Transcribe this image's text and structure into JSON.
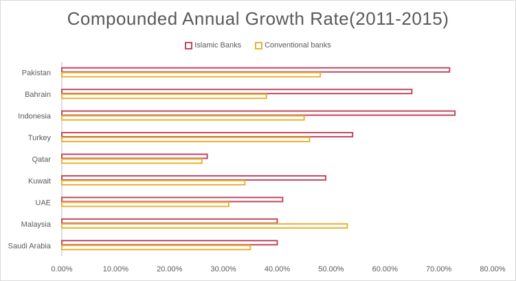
{
  "chart_data": {
    "type": "bar",
    "orientation": "horizontal",
    "title": "Compounded Annual Growth Rate(2011-2015)",
    "categories": [
      "Pakistan",
      "Bahrain",
      "Indonesia",
      "Turkey",
      "Qatar",
      "Kuwait",
      "UAE",
      "Malaysia",
      "Saudi Arabia"
    ],
    "series": [
      {
        "name": "Islamic Banks",
        "color": "#c0475e",
        "values": [
          0.72,
          0.65,
          0.73,
          0.54,
          0.27,
          0.49,
          0.41,
          0.4,
          0.4
        ]
      },
      {
        "name": "Conventional banks",
        "color": "#e8b233",
        "values": [
          0.48,
          0.38,
          0.45,
          0.46,
          0.26,
          0.34,
          0.31,
          0.53,
          0.35
        ]
      }
    ],
    "xlim": [
      0,
      0.8
    ],
    "xticks": [
      "0.00%",
      "10.00%",
      "20.00%",
      "30.00%",
      "40.00%",
      "50.00%",
      "60.00%",
      "70.00%",
      "80.00%"
    ],
    "legend_position": "top",
    "grid": false
  }
}
